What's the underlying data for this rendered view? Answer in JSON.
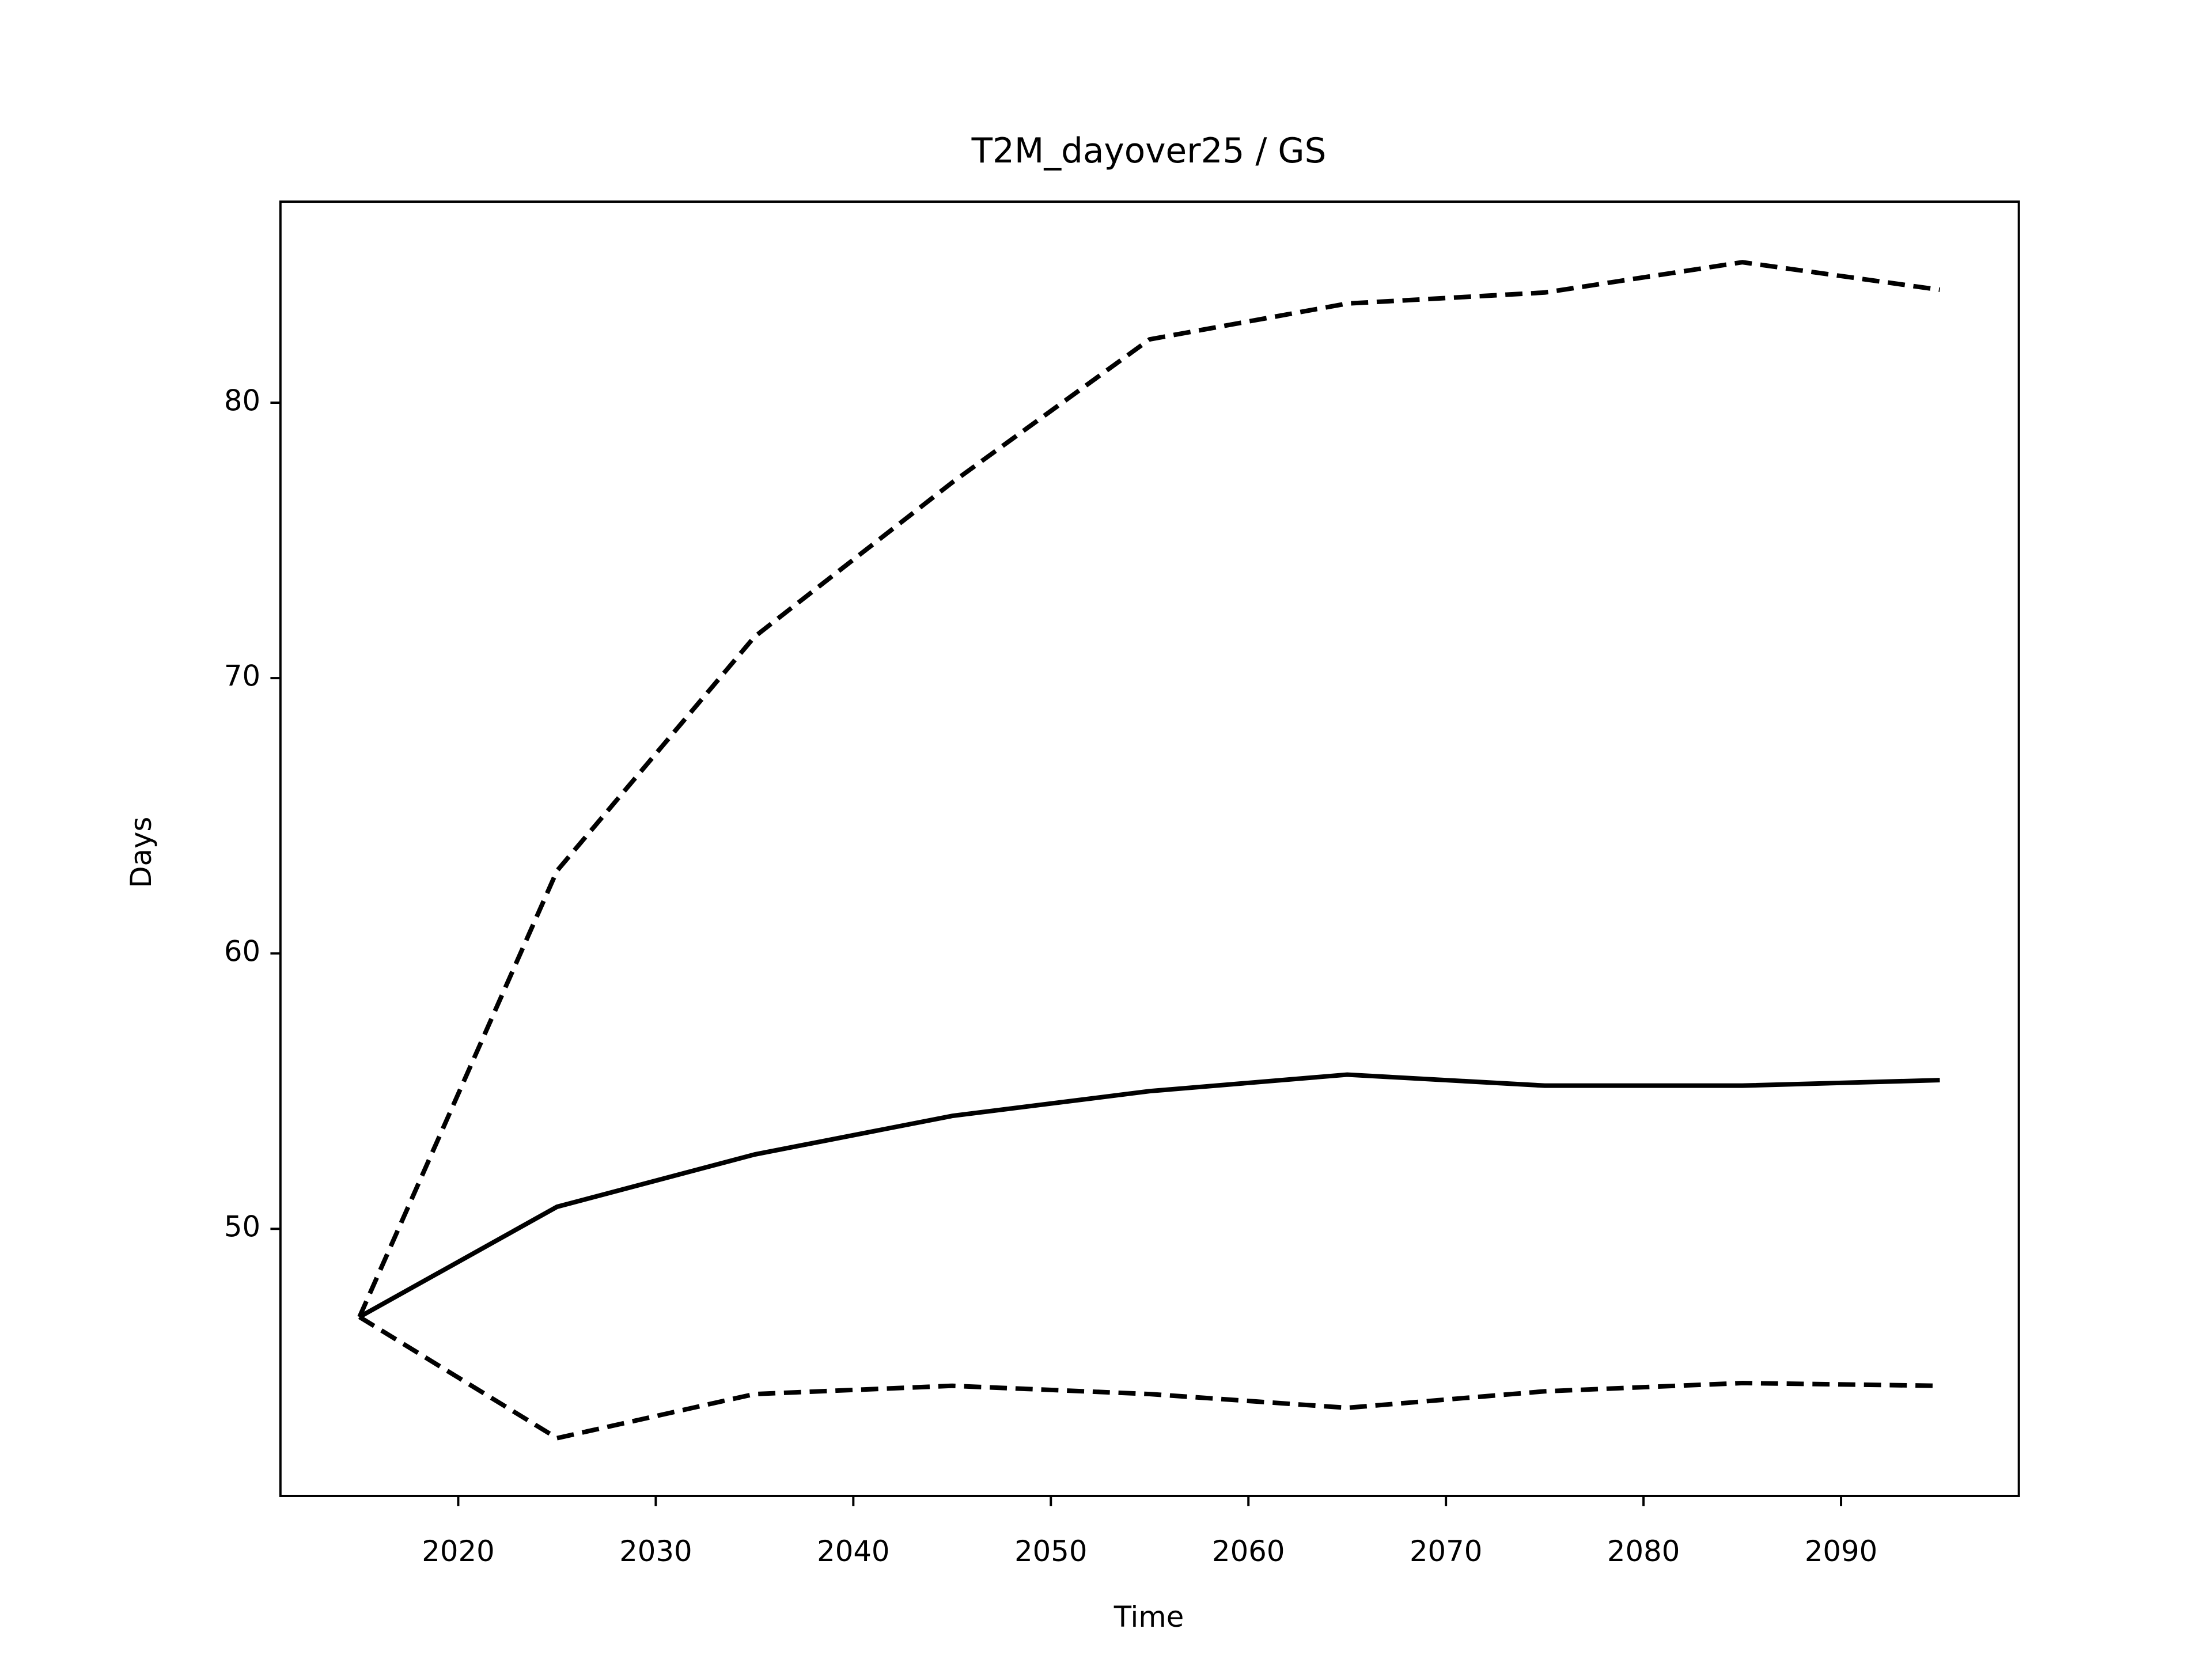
{
  "chart_data": {
    "type": "line",
    "title": "T2M_dayover25 / GS",
    "xlabel": "Time",
    "ylabel": "Days",
    "x": [
      2015,
      2025,
      2035,
      2045,
      2055,
      2065,
      2075,
      2085,
      2095
    ],
    "series": [
      {
        "color": "#000000",
        "linestyle": "solid",
        "values": [
          46.8,
          50.8,
          52.7,
          54.1,
          55.0,
          55.6,
          55.2,
          55.2,
          55.4
        ]
      },
      {
        "color": "#000000",
        "linestyle": "dashed",
        "values": [
          46.8,
          63.0,
          71.5,
          77.1,
          82.3,
          83.6,
          84.0,
          85.1,
          84.1
        ]
      },
      {
        "color": "#000000",
        "linestyle": "dashed",
        "values": [
          46.8,
          42.4,
          44.0,
          44.3,
          44.0,
          43.5,
          44.1,
          44.4,
          44.3
        ]
      }
    ],
    "xlim": [
      2011,
      2099
    ],
    "ylim": [
      40.3,
      87.3
    ],
    "xticks": [
      2020,
      2030,
      2040,
      2050,
      2060,
      2070,
      2080,
      2090
    ],
    "yticks": [
      50,
      60,
      70,
      80
    ]
  }
}
